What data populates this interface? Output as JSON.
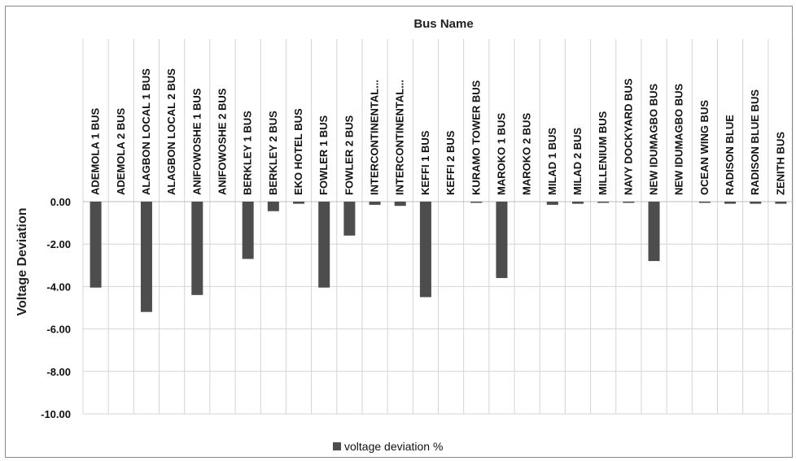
{
  "chart_data": {
    "type": "bar",
    "title": "",
    "xlabel": "Bus Name",
    "ylabel": "Voltage Deviation",
    "ylim": [
      -10,
      0
    ],
    "yticks": [
      "0.00",
      "-2.00",
      "-4.00",
      "-6.00",
      "-8.00",
      "-10.00"
    ],
    "grid": true,
    "legend_position": "bottom",
    "categories": [
      "ADEMOLA 1 BUS",
      "ADEMOLA 2 BUS",
      "ALAGBON LOCAL 1 BUS",
      "ALAGBON LOCAL 2 BUS",
      "ANIFOWOSHE 1 BUS",
      "ANIFOWOSHE 2 BUS",
      "BERKLEY 1 BUS",
      "BERKLEY 2 BUS",
      "EKO HOTEL BUS",
      "FOWLER 1 BUS",
      "FOWLER 2 BUS",
      "INTERCONTINENTAL...",
      "INTERCONTINENTAL...",
      "KEFFI 1 BUS",
      "KEFFI 2 BUS",
      "KURAMO TOWER BUS",
      "MAROKO 1 BUS",
      "MAROKO 2 BUS",
      "MILAD 1 BUS",
      "MILAD 2 BUS",
      "MILLENIUM BUS",
      "NAVY DOCKYARD BUS",
      "NEW IDUMAGBO BUS",
      "NEW IDUMAGBO BUS",
      "OCEAN WING BUS",
      "RADISON BLUE",
      "RADISON BLUE BUS",
      "ZENITH BUS"
    ],
    "series": [
      {
        "name": "voltage deviation %",
        "color": "#4d4d4d",
        "values": [
          -4.05,
          0,
          -5.2,
          0,
          -4.4,
          0,
          -2.7,
          -0.45,
          -0.1,
          -4.05,
          -1.6,
          -0.15,
          -0.2,
          -4.5,
          0,
          -0.05,
          -3.6,
          0,
          -0.15,
          -0.1,
          -0.05,
          -0.05,
          -2.8,
          0,
          -0.05,
          -0.1,
          -0.1,
          -0.1
        ]
      }
    ]
  }
}
